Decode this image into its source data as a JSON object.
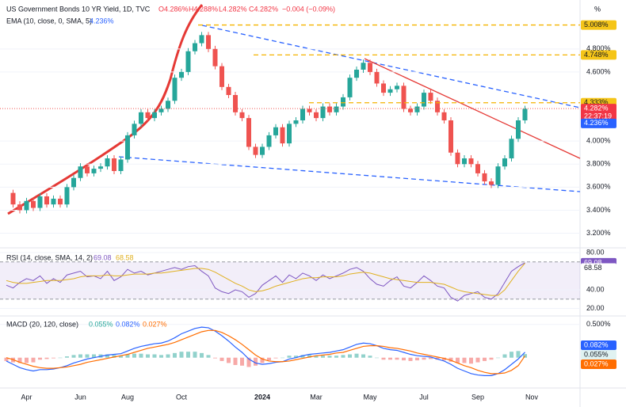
{
  "chart_data": [
    {
      "type": "candlestick",
      "title": "US Government Bonds 10 YR Yield, 1D, TVC",
      "ohlc": [
        {
          "value": 4.286,
          "label": "O4.286%"
        },
        {
          "value": 4.288,
          "label": "H4.288%"
        },
        {
          "value": 4.282,
          "label": "L4.282%"
        },
        {
          "value": 4.282,
          "label": "C4.282%"
        }
      ],
      "change": {
        "value": -0.004,
        "label": "−0.004 (−0.09%)"
      },
      "indicator": "EMA (10, close, 0, SMA, 5)",
      "ema": {
        "value": 4.236,
        "label": "4.236%"
      },
      "axis_unit": "%",
      "categories": [
        null,
        null,
        null,
        "Apr",
        null,
        null,
        null,
        null,
        null,
        null,
        null,
        "Jun",
        null,
        null,
        null,
        null,
        null,
        null,
        "Aug",
        null,
        null,
        null,
        null,
        null,
        null,
        null,
        "Oct",
        null,
        null,
        null,
        null,
        null,
        null,
        null,
        null,
        null,
        null,
        null,
        "2024",
        null,
        null,
        null,
        null,
        null,
        null,
        null,
        "Mar",
        null,
        null,
        null,
        null,
        null,
        null,
        null,
        "May",
        null,
        null,
        null,
        null,
        null,
        null,
        null,
        "Jul",
        null,
        null,
        null,
        null,
        null,
        null,
        null,
        "Sep",
        null,
        null,
        null,
        null,
        null,
        null,
        null,
        "Nov"
      ],
      "series": [
        {
          "name": "close",
          "up_color": "#26a69a",
          "down_color": "#ef5350",
          "values": [
            3.55,
            3.45,
            3.4,
            3.48,
            3.42,
            3.52,
            3.45,
            3.5,
            3.45,
            3.6,
            3.68,
            3.78,
            3.72,
            3.76,
            3.78,
            3.85,
            3.74,
            3.84,
            4.05,
            4.15,
            4.25,
            4.2,
            4.25,
            4.28,
            4.35,
            4.55,
            4.6,
            4.78,
            4.85,
            4.92,
            4.8,
            4.65,
            4.47,
            4.4,
            4.25,
            4.2,
            3.95,
            3.88,
            3.95,
            4.05,
            4.12,
            3.98,
            4.15,
            4.18,
            4.28,
            4.25,
            4.2,
            4.3,
            4.25,
            4.3,
            4.38,
            4.55,
            4.62,
            4.68,
            4.6,
            4.5,
            4.42,
            4.45,
            4.48,
            4.28,
            4.25,
            4.3,
            4.42,
            4.35,
            4.25,
            4.18,
            3.9,
            3.8,
            3.85,
            3.8,
            3.72,
            3.65,
            3.62,
            3.78,
            3.85,
            4.02,
            4.18,
            4.28,
            null
          ]
        }
      ],
      "price_lines": [
        {
          "value": 5.008,
          "label": "5.008%"
        },
        {
          "value": 4.748,
          "label": "4.748%"
        },
        {
          "value": 4.333,
          "label": "4.333%"
        }
      ],
      "current": {
        "value": 4.282,
        "label": "4.282%",
        "countdown": "22:37:19"
      },
      "ylim": [
        3.08,
        5.17
      ],
      "yticks": [
        {
          "value": 3.2,
          "label": "3.200%"
        },
        {
          "value": 3.4,
          "label": "3.400%"
        },
        {
          "value": 3.6,
          "label": "3.600%"
        },
        {
          "value": 3.8,
          "label": "3.800%"
        },
        {
          "value": 4.0,
          "label": "4.000%"
        },
        {
          "value": 4.6,
          "label": "4.600%"
        },
        {
          "value": 4.8,
          "label": "4.800%"
        }
      ]
    },
    {
      "type": "line",
      "title": "RSI (14, close, SMA, 14, 2)",
      "series": [
        {
          "name": "RSI",
          "color": "#7e57c2",
          "value_label": "69.08",
          "values": [
            45,
            42,
            48,
            52,
            50,
            55,
            47,
            52,
            48,
            56,
            58,
            60,
            54,
            55,
            52,
            60,
            50,
            54,
            62,
            58,
            60,
            56,
            58,
            60,
            62,
            64,
            62,
            65,
            66,
            60,
            55,
            42,
            38,
            36,
            40,
            38,
            32,
            36,
            45,
            50,
            55,
            48,
            56,
            52,
            58,
            55,
            50,
            56,
            52,
            55,
            58,
            62,
            64,
            60,
            52,
            46,
            44,
            50,
            54,
            44,
            42,
            48,
            55,
            50,
            44,
            42,
            32,
            28,
            34,
            36,
            38,
            32,
            30,
            36,
            48,
            60,
            65,
            69.08,
            null
          ]
        },
        {
          "name": "MA",
          "color": "#e0b020",
          "value_label": "68.58",
          "values": [
            50,
            48,
            47,
            47,
            48,
            49,
            50,
            50,
            50,
            51,
            52,
            54,
            55,
            55,
            55,
            56,
            55,
            55,
            56,
            57,
            57,
            57,
            58,
            58,
            59,
            60,
            61,
            62,
            63,
            63,
            62,
            59,
            55,
            51,
            47,
            44,
            40,
            38,
            39,
            41,
            44,
            46,
            48,
            50,
            52,
            53,
            53,
            54,
            54,
            54,
            55,
            57,
            58,
            59,
            58,
            56,
            54,
            52,
            51,
            50,
            49,
            48,
            48,
            48,
            47,
            46,
            43,
            40,
            38,
            37,
            36,
            35,
            34,
            34,
            40,
            50,
            60,
            68.58,
            null
          ]
        }
      ],
      "band": [
        30,
        70
      ],
      "ylim": [
        12.8,
        84.3
      ],
      "yticks": [
        {
          "value": 20,
          "label": "20.00"
        },
        {
          "value": 40,
          "label": "40.00"
        },
        {
          "value": 80,
          "label": "80.00"
        }
      ]
    },
    {
      "type": "macd",
      "title": "MACD (20, 120, close)",
      "series": [
        {
          "name": "histogram",
          "color": "#26a69a",
          "neg_color": "#ef5350",
          "value_label": "0.055%",
          "values": [
            -0.05,
            -0.07,
            -0.08,
            -0.08,
            -0.07,
            -0.03,
            -0.02,
            -0.01,
            0,
            0.02,
            0.04,
            0.05,
            0.05,
            0.05,
            0.05,
            0.05,
            0.04,
            0.03,
            0.05,
            0.06,
            0.06,
            0.05,
            0.05,
            0.04,
            0.05,
            0.07,
            0.09,
            0.09,
            0.09,
            0.07,
            0.04,
            -0.01,
            -0.05,
            -0.08,
            -0.11,
            -0.12,
            -0.14,
            -0.12,
            -0.08,
            -0.04,
            -0.01,
            0,
            0.03,
            0.03,
            0.04,
            0.04,
            0.03,
            0.03,
            0.03,
            0.03,
            0.04,
            0.05,
            0.06,
            0.05,
            0.03,
            0,
            -0.03,
            -0.03,
            -0.03,
            -0.04,
            -0.05,
            -0.04,
            -0.03,
            -0.02,
            -0.03,
            -0.04,
            -0.06,
            -0.08,
            -0.08,
            -0.09,
            -0.07,
            -0.05,
            -0.03,
            0,
            0.05,
            0.09,
            0.1,
            0.055,
            null
          ]
        },
        {
          "name": "MACD",
          "color": "#2962ff",
          "value_label": "0.082%",
          "values": [
            -0.05,
            -0.1,
            -0.15,
            -0.18,
            -0.2,
            -0.18,
            -0.18,
            -0.17,
            -0.15,
            -0.12,
            -0.08,
            -0.05,
            -0.02,
            0,
            0.02,
            0.04,
            0.05,
            0.06,
            0.1,
            0.14,
            0.17,
            0.19,
            0.21,
            0.22,
            0.25,
            0.3,
            0.36,
            0.4,
            0.44,
            0.46,
            0.45,
            0.4,
            0.33,
            0.25,
            0.16,
            0.08,
            -0.02,
            -0.08,
            -0.1,
            -0.09,
            -0.07,
            -0.06,
            -0.02,
            0,
            0.03,
            0.05,
            0.06,
            0.07,
            0.08,
            0.1,
            0.12,
            0.16,
            0.2,
            0.22,
            0.21,
            0.18,
            0.14,
            0.12,
            0.11,
            0.08,
            0.05,
            0.03,
            0.02,
            0.01,
            -0.02,
            -0.05,
            -0.1,
            -0.16,
            -0.2,
            -0.24,
            -0.26,
            -0.27,
            -0.27,
            -0.24,
            -0.18,
            -0.1,
            -0.02,
            0.082,
            null
          ]
        },
        {
          "name": "Signal",
          "color": "#ff6d00",
          "value_label": "0.027%",
          "values": [
            0,
            -0.03,
            -0.07,
            -0.1,
            -0.13,
            -0.15,
            -0.16,
            -0.16,
            -0.15,
            -0.14,
            -0.12,
            -0.1,
            -0.07,
            -0.05,
            -0.03,
            -0.01,
            0.01,
            0.03,
            0.05,
            0.08,
            0.11,
            0.14,
            0.16,
            0.18,
            0.2,
            0.23,
            0.27,
            0.31,
            0.35,
            0.39,
            0.41,
            0.41,
            0.38,
            0.33,
            0.27,
            0.2,
            0.12,
            0.04,
            -0.02,
            -0.05,
            -0.06,
            -0.06,
            -0.05,
            -0.03,
            -0.01,
            0.01,
            0.03,
            0.04,
            0.05,
            0.07,
            0.08,
            0.11,
            0.14,
            0.17,
            0.18,
            0.18,
            0.17,
            0.15,
            0.14,
            0.12,
            0.1,
            0.07,
            0.05,
            0.03,
            0.01,
            -0.01,
            -0.04,
            -0.08,
            -0.12,
            -0.15,
            -0.19,
            -0.22,
            -0.24,
            -0.24,
            -0.23,
            -0.19,
            -0.12,
            0.027,
            null
          ]
        }
      ],
      "ylim": [
        -0.48,
        0.64
      ],
      "yticks": [
        {
          "value": 0.5,
          "label": "0.500%"
        }
      ]
    }
  ]
}
